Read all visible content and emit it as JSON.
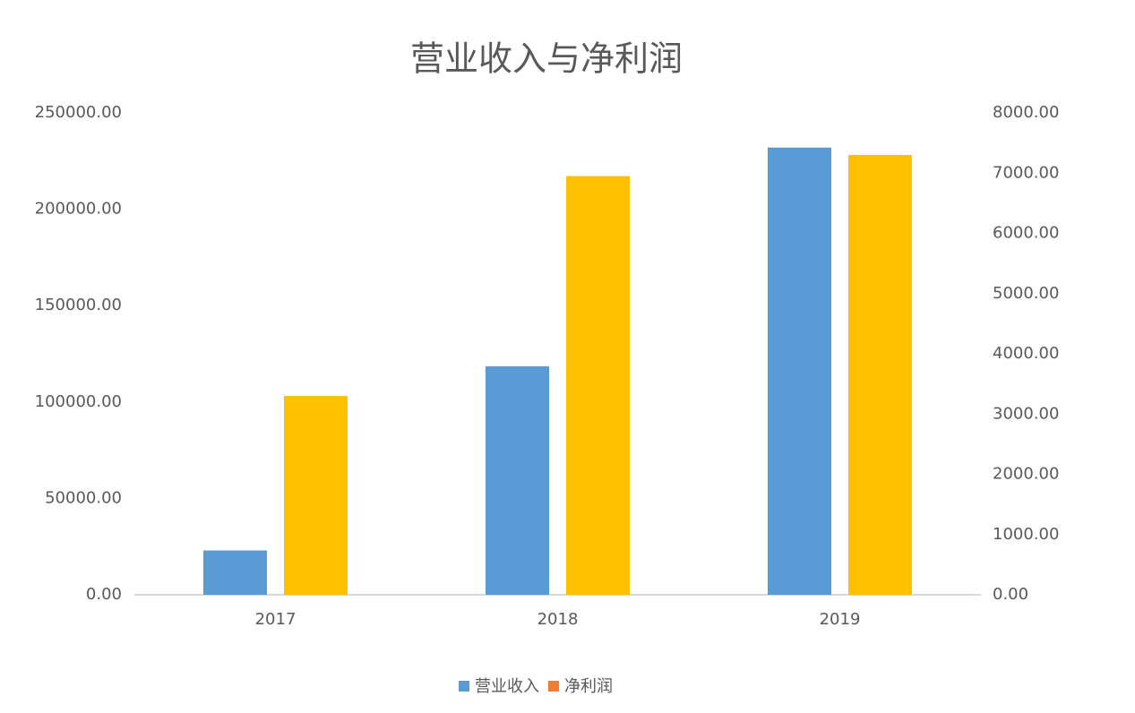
{
  "chart_data": {
    "type": "bar",
    "title": "营业收入与净利润",
    "categories": [
      "2017",
      "2018",
      "2019"
    ],
    "series": [
      {
        "name": "营业收入",
        "color": "#5b9bd5",
        "values": [
          23000,
          118500,
          232000
        ]
      },
      {
        "name": "净利润",
        "color": "#ffc000",
        "legend_color": "#ed7d31",
        "axis": "y2",
        "values": [
          3300,
          6950,
          7300
        ]
      }
    ],
    "ylim": [
      0,
      250000
    ],
    "yticks": [
      {
        "value": 0,
        "label": "0.00"
      },
      {
        "value": 50000,
        "label": "50000.00"
      },
      {
        "value": 100000,
        "label": "100000.00"
      },
      {
        "value": 150000,
        "label": "150000.00"
      },
      {
        "value": 200000,
        "label": "200000.00"
      },
      {
        "value": 250000,
        "label": "250000.00"
      }
    ],
    "y2lim": [
      0,
      8000
    ],
    "y2ticks": [
      {
        "value": 0,
        "label": "0.00"
      },
      {
        "value": 1000,
        "label": "1000.00"
      },
      {
        "value": 2000,
        "label": "2000.00"
      },
      {
        "value": 3000,
        "label": "3000.00"
      },
      {
        "value": 4000,
        "label": "4000.00"
      },
      {
        "value": 5000,
        "label": "5000.00"
      },
      {
        "value": 6000,
        "label": "6000.00"
      },
      {
        "value": 7000,
        "label": "7000.00"
      },
      {
        "value": 8000,
        "label": "8000.00"
      }
    ],
    "grid": false,
    "legend": "bottom"
  }
}
